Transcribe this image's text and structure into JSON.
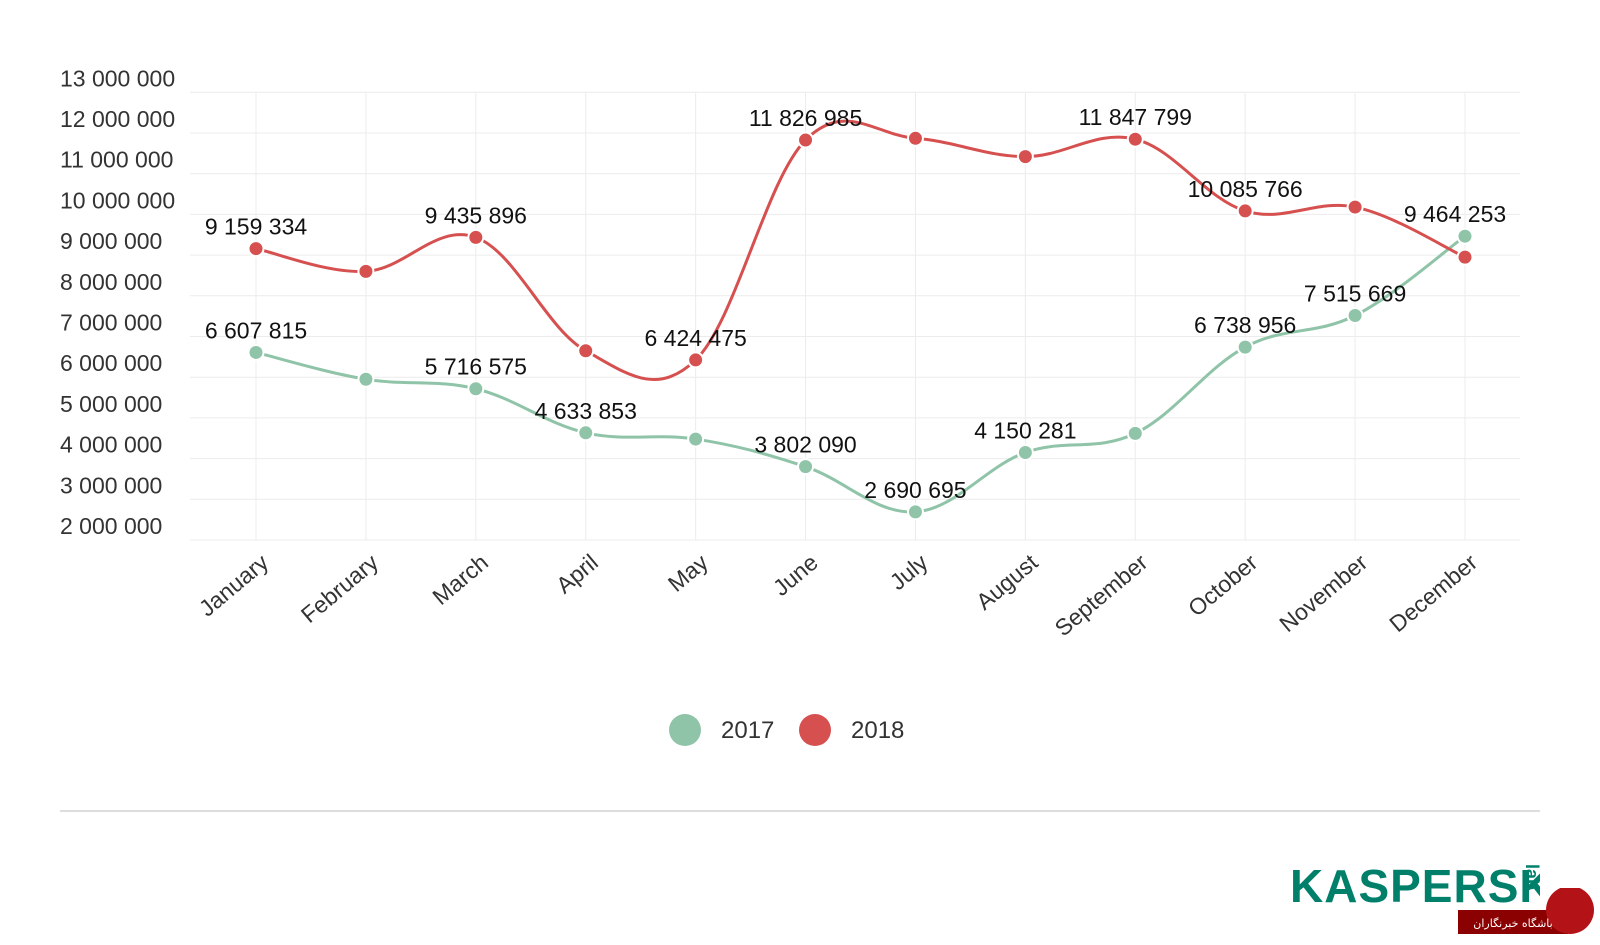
{
  "chart_data": {
    "type": "line",
    "title": "",
    "xlabel": "",
    "ylabel": "",
    "categories": [
      "January",
      "February",
      "March",
      "April",
      "May",
      "June",
      "July",
      "August",
      "September",
      "October",
      "November",
      "December"
    ],
    "ylim": [
      2000000,
      13000000
    ],
    "yticks": [
      {
        "value": 13000000,
        "label": "13 000 000"
      },
      {
        "value": 12000000,
        "label": "12 000 000"
      },
      {
        "value": 11000000,
        "label": "11 000 000"
      },
      {
        "value": 10000000,
        "label": "10 000 000"
      },
      {
        "value": 9000000,
        "label": "9 000 000"
      },
      {
        "value": 8000000,
        "label": "8 000 000"
      },
      {
        "value": 7000000,
        "label": "7 000 000"
      },
      {
        "value": 6000000,
        "label": "6 000 000"
      },
      {
        "value": 5000000,
        "label": "5 000 000"
      },
      {
        "value": 4000000,
        "label": "4 000 000"
      },
      {
        "value": 3000000,
        "label": "3 000 000"
      },
      {
        "value": 2000000,
        "label": "2 000 000"
      }
    ],
    "grid": true,
    "legend_position": "bottom",
    "series": [
      {
        "name": "2017",
        "color": "#8fc4a8",
        "values": [
          6607815,
          5950000,
          5716575,
          4633853,
          4480000,
          3802090,
          2690695,
          4150281,
          4620000,
          6738956,
          7515669,
          9464253
        ],
        "labels": [
          "6 607 815",
          "",
          "5 716 575",
          "4 633 853",
          "",
          "3 802 090",
          "2 690 695",
          "4 150 281",
          "",
          "6 738 956",
          "7 515 669",
          "9 464 253"
        ]
      },
      {
        "name": "2018",
        "color": "#d65050",
        "values": [
          9159334,
          8600000,
          9435896,
          6650000,
          6424475,
          11826985,
          11870000,
          11420000,
          11847799,
          10085766,
          10180000,
          8950000
        ],
        "labels": [
          "9 159 334",
          "",
          "9 435 896",
          "",
          "6 424 475",
          "11 826 985",
          "",
          "",
          "11 847 799",
          "10 085 766",
          "",
          ""
        ]
      }
    ]
  },
  "brand": {
    "logo_text": "KASPERSKY",
    "logo_suffix": "lab",
    "logo_color": "#00806a"
  },
  "watermark": {
    "text": "باشگاه خبرنگاران"
  }
}
